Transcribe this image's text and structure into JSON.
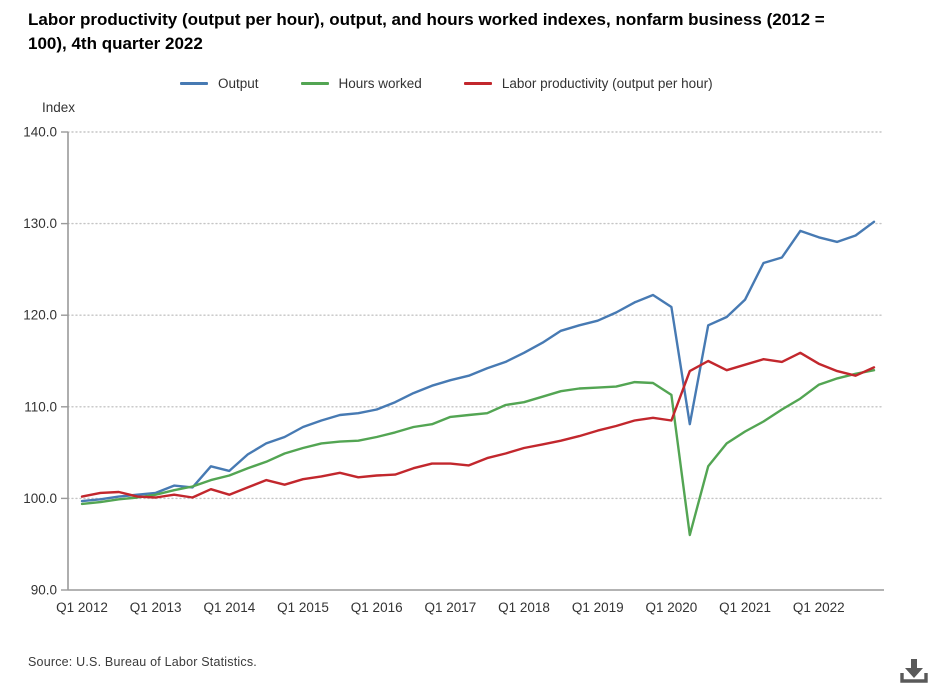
{
  "page": {
    "title": "Labor productivity (output per hour), output, and hours worked indexes, nonfarm business (2012 = 100), 4th quarter 2022",
    "source_note": "Source: U.S. Bureau of Labor Statistics."
  },
  "chart_data": {
    "type": "line",
    "title": "Labor productivity (output per hour), output, and hours worked indexes, nonfarm business (2012 = 100), 4th quarter 2022",
    "y_axis_label": "Index",
    "ylim": [
      90,
      140
    ],
    "ytick_step": 10,
    "ytick_format": "one-decimal",
    "grid": "horizontal-dotted",
    "legend_position": "top",
    "x_tick_labels": [
      "Q1 2012",
      "Q1 2013",
      "Q1 2014",
      "Q1 2015",
      "Q1 2016",
      "Q1 2017",
      "Q1 2018",
      "Q1 2019",
      "Q1 2020",
      "Q1 2021",
      "Q1 2022"
    ],
    "categories": [
      "Q1 2012",
      "Q2 2012",
      "Q3 2012",
      "Q4 2012",
      "Q1 2013",
      "Q2 2013",
      "Q3 2013",
      "Q4 2013",
      "Q1 2014",
      "Q2 2014",
      "Q3 2014",
      "Q4 2014",
      "Q1 2015",
      "Q2 2015",
      "Q3 2015",
      "Q4 2015",
      "Q1 2016",
      "Q2 2016",
      "Q3 2016",
      "Q4 2016",
      "Q1 2017",
      "Q2 2017",
      "Q3 2017",
      "Q4 2017",
      "Q1 2018",
      "Q2 2018",
      "Q3 2018",
      "Q4 2018",
      "Q1 2019",
      "Q2 2019",
      "Q3 2019",
      "Q4 2019",
      "Q1 2020",
      "Q2 2020",
      "Q3 2020",
      "Q4 2020",
      "Q1 2021",
      "Q2 2021",
      "Q3 2021",
      "Q4 2021",
      "Q1 2022",
      "Q2 2022",
      "Q3 2022",
      "Q4 2022"
    ],
    "series": [
      {
        "name": "Output",
        "color": "#477ab3",
        "values": [
          99.7,
          99.9,
          100.2,
          100.4,
          100.6,
          101.4,
          101.2,
          103.5,
          103.0,
          104.8,
          106.0,
          106.7,
          107.8,
          108.5,
          109.1,
          109.3,
          109.7,
          110.5,
          111.5,
          112.3,
          112.9,
          113.4,
          114.2,
          114.9,
          115.9,
          117.0,
          118.3,
          118.9,
          119.4,
          120.3,
          121.4,
          122.2,
          120.9,
          108.1,
          118.9,
          119.8,
          121.7,
          125.7,
          126.3,
          129.2,
          128.5,
          128.0,
          128.7,
          130.2
        ]
      },
      {
        "name": "Hours worked",
        "color": "#53a553",
        "values": [
          99.4,
          99.6,
          99.9,
          100.1,
          100.4,
          100.9,
          101.3,
          102.0,
          102.5,
          103.3,
          104.0,
          104.9,
          105.5,
          106.0,
          106.2,
          106.3,
          106.7,
          107.2,
          107.8,
          108.1,
          108.9,
          109.1,
          109.3,
          110.2,
          110.5,
          111.1,
          111.7,
          112.0,
          112.1,
          112.2,
          112.7,
          112.6,
          111.3,
          96.0,
          103.5,
          106.0,
          107.3,
          108.4,
          109.7,
          110.9,
          112.4,
          113.1,
          113.6,
          114.0
        ]
      },
      {
        "name": "Labor productivity (output per hour)",
        "color": "#c2272d",
        "values": [
          100.2,
          100.6,
          100.7,
          100.2,
          100.1,
          100.4,
          100.1,
          101.0,
          100.4,
          101.2,
          102.0,
          101.5,
          102.1,
          102.4,
          102.8,
          102.3,
          102.5,
          102.6,
          103.3,
          103.8,
          103.8,
          103.6,
          104.4,
          104.9,
          105.5,
          105.9,
          106.3,
          106.8,
          107.4,
          107.9,
          108.5,
          108.8,
          108.5,
          113.9,
          115.0,
          114.0,
          114.6,
          115.2,
          114.9,
          115.9,
          114.7,
          113.9,
          113.4,
          114.3
        ]
      }
    ]
  },
  "icons": {
    "download": "download-icon"
  }
}
